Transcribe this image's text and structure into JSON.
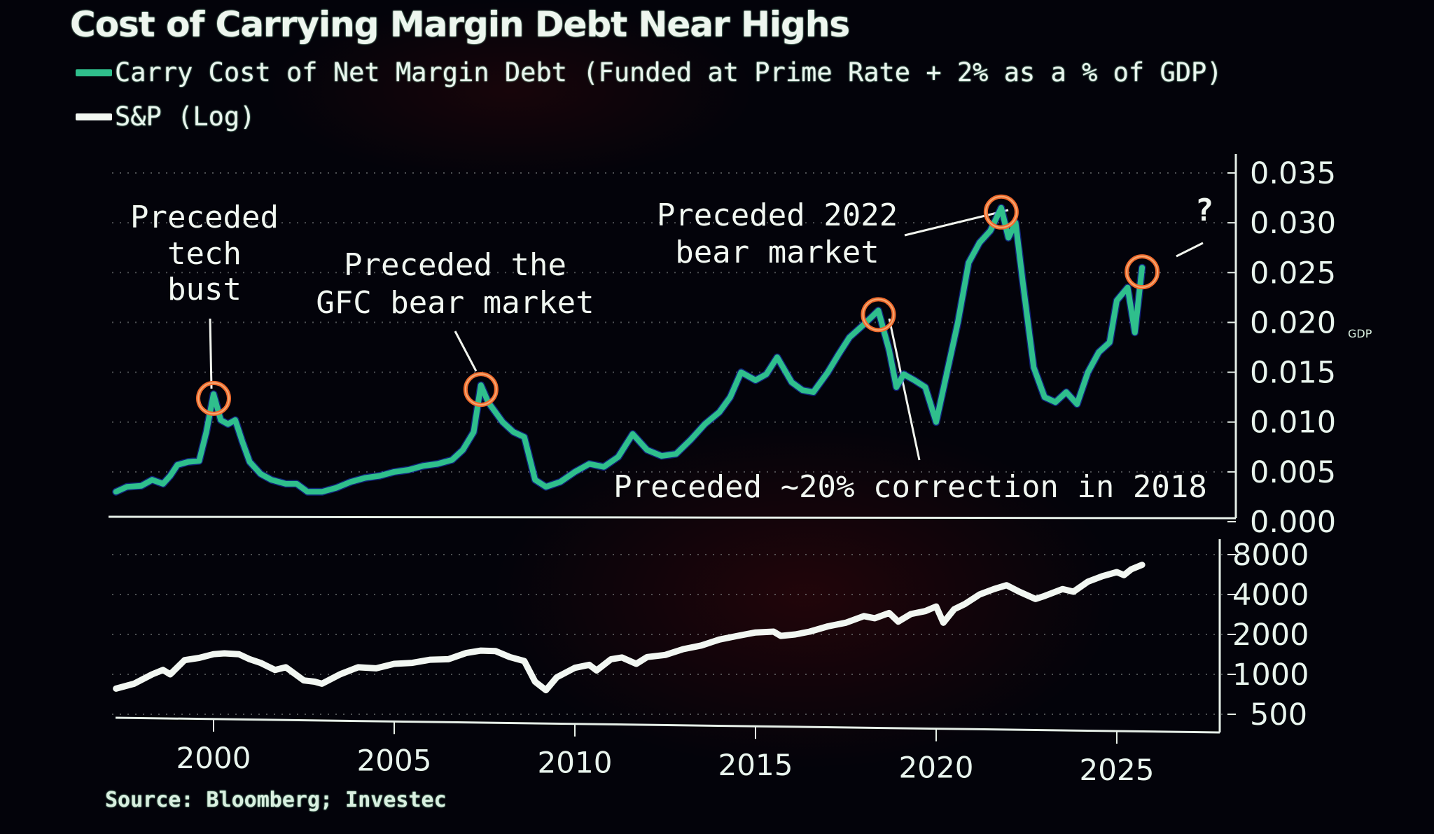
{
  "title": "Cost of Carrying Margin Debt Near Highs",
  "legend": [
    {
      "label": "Carry Cost of Net Margin Debt (Funded at Prime Rate + 2% as a % of GDP)",
      "color": "#2fbf8c"
    },
    {
      "label": "S&P (Log)",
      "color": "#f2f7f2"
    }
  ],
  "source": "Source: Bloomberg; Investec",
  "colors": {
    "background": "#03030a",
    "carry_line": "#2fbf8c",
    "sp_line": "#f2f7f2",
    "highlight_circle": "#ef6a2c",
    "axis": "#e6efe8"
  },
  "chart_data": [
    {
      "type": "line",
      "name": "upper-panel",
      "title": "Cost of Carrying Margin Debt Near Highs",
      "series": [
        {
          "name": "Carry Cost of Net Margin Debt (Funded at Prime Rate + 2% as a % of GDP)",
          "x": [
            1997.3,
            1997.6,
            1998.0,
            1998.3,
            1998.6,
            1998.8,
            1999.0,
            1999.3,
            1999.6,
            1999.8,
            2000.0,
            2000.2,
            2000.4,
            2000.6,
            2000.8,
            2001.0,
            2001.3,
            2001.6,
            2002.0,
            2002.3,
            2002.6,
            2003.0,
            2003.4,
            2003.8,
            2004.2,
            2004.6,
            2005.0,
            2005.4,
            2005.8,
            2006.2,
            2006.6,
            2006.9,
            2007.2,
            2007.4,
            2007.6,
            2007.8,
            2008.0,
            2008.3,
            2008.6,
            2008.9,
            2009.2,
            2009.6,
            2010.0,
            2010.4,
            2010.8,
            2011.2,
            2011.6,
            2012.0,
            2012.4,
            2012.8,
            2013.2,
            2013.6,
            2014.0,
            2014.3,
            2014.6,
            2015.0,
            2015.3,
            2015.6,
            2016.0,
            2016.3,
            2016.6,
            2017.0,
            2017.3,
            2017.6,
            2018.0,
            2018.4,
            2018.7,
            2018.9,
            2019.1,
            2019.4,
            2019.7,
            2020.0,
            2020.3,
            2020.6,
            2020.9,
            2021.2,
            2021.5,
            2021.8,
            2022.0,
            2022.2,
            2022.4,
            2022.7,
            2023.0,
            2023.3,
            2023.6,
            2023.9,
            2024.2,
            2024.5,
            2024.8,
            2025.0,
            2025.3,
            2025.5,
            2025.7
          ],
          "y": [
            0.003,
            0.0035,
            0.0036,
            0.0042,
            0.0038,
            0.0046,
            0.0057,
            0.006,
            0.0061,
            0.009,
            0.0128,
            0.0102,
            0.0098,
            0.0102,
            0.008,
            0.006,
            0.0048,
            0.0042,
            0.0038,
            0.0038,
            0.003,
            0.003,
            0.0034,
            0.004,
            0.0044,
            0.0046,
            0.005,
            0.0052,
            0.0056,
            0.0058,
            0.0062,
            0.0072,
            0.009,
            0.0137,
            0.012,
            0.011,
            0.01,
            0.009,
            0.0085,
            0.0042,
            0.0035,
            0.004,
            0.005,
            0.0058,
            0.0055,
            0.0065,
            0.0088,
            0.0072,
            0.0066,
            0.0068,
            0.0082,
            0.0098,
            0.011,
            0.0125,
            0.015,
            0.0142,
            0.0148,
            0.0165,
            0.014,
            0.0132,
            0.013,
            0.015,
            0.0168,
            0.0185,
            0.0198,
            0.0212,
            0.0172,
            0.0135,
            0.0148,
            0.0142,
            0.0135,
            0.01,
            0.015,
            0.02,
            0.026,
            0.028,
            0.0292,
            0.0315,
            0.0285,
            0.03,
            0.024,
            0.0155,
            0.0125,
            0.012,
            0.013,
            0.0118,
            0.015,
            0.017,
            0.018,
            0.0222,
            0.0235,
            0.019,
            0.0255
          ]
        }
      ],
      "ylabel": "",
      "y_unit_label": "GDP",
      "ylim": [
        0,
        0.035
      ],
      "yticks": [
        "0.035",
        "0.030",
        "0.025",
        "0.020",
        "0.015",
        "0.010",
        "0.005",
        "0.000"
      ],
      "ytick_values": [
        0.035,
        0.03,
        0.025,
        0.02,
        0.015,
        0.01,
        0.005,
        0.0
      ],
      "grid": true,
      "legend_position": "top-left",
      "annotations": [
        {
          "lines": [
            "Preceded",
            "tech",
            "bust"
          ],
          "x": 2000.0,
          "y": 0.0128
        },
        {
          "lines": [
            "Preceded the",
            "GFC bear market"
          ],
          "x": 2007.4,
          "y": 0.0137
        },
        {
          "lines": [
            "Preceded ~20% correction in 2018"
          ],
          "x": 2018.4,
          "y": 0.0212
        },
        {
          "lines": [
            "Preceded 2022",
            "bear market"
          ],
          "x": 2021.8,
          "y": 0.0315
        },
        {
          "lines": [
            "?"
          ],
          "x": 2025.7,
          "y": 0.0255
        }
      ]
    },
    {
      "type": "line",
      "name": "lower-panel",
      "series": [
        {
          "name": "S&P (Log)",
          "x": [
            1997.3,
            1997.8,
            1998.3,
            1998.6,
            1998.8,
            1999.2,
            1999.6,
            2000.0,
            2000.3,
            2000.7,
            2001.0,
            2001.3,
            2001.7,
            2002.0,
            2002.5,
            2002.8,
            2003.0,
            2003.5,
            2004.0,
            2004.5,
            2005.0,
            2005.5,
            2006.0,
            2006.5,
            2007.0,
            2007.4,
            2007.8,
            2008.2,
            2008.6,
            2008.9,
            2009.2,
            2009.5,
            2010.0,
            2010.4,
            2010.6,
            2011.0,
            2011.3,
            2011.7,
            2012.0,
            2012.5,
            2013.0,
            2013.5,
            2014.0,
            2014.5,
            2015.0,
            2015.5,
            2015.7,
            2016.1,
            2016.5,
            2017.0,
            2017.5,
            2018.0,
            2018.3,
            2018.7,
            2018.95,
            2019.3,
            2019.7,
            2020.0,
            2020.2,
            2020.5,
            2020.8,
            2021.2,
            2021.6,
            2021.95,
            2022.3,
            2022.75,
            2023.0,
            2023.5,
            2023.8,
            2024.2,
            2024.6,
            2025.0,
            2025.2,
            2025.4,
            2025.7
          ],
          "y": [
            780,
            850,
            1000,
            1080,
            1000,
            1280,
            1330,
            1420,
            1440,
            1420,
            1300,
            1220,
            1080,
            1130,
            900,
            880,
            850,
            1000,
            1130,
            1110,
            1200,
            1220,
            1290,
            1300,
            1450,
            1510,
            1500,
            1350,
            1260,
            880,
            760,
            950,
            1120,
            1180,
            1070,
            1300,
            1340,
            1200,
            1350,
            1400,
            1550,
            1650,
            1830,
            1950,
            2070,
            2100,
            1950,
            2000,
            2100,
            2300,
            2450,
            2750,
            2650,
            2900,
            2500,
            2850,
            3000,
            3250,
            2450,
            3100,
            3400,
            4000,
            4400,
            4700,
            4200,
            3700,
            3900,
            4400,
            4200,
            5000,
            5500,
            5900,
            5600,
            6200,
            6700
          ]
        }
      ],
      "ylim": [
        400,
        9000
      ],
      "yscale": "log",
      "yticks": [
        "8000",
        "4000",
        "2000",
        "1000",
        "500"
      ],
      "ytick_values": [
        8000,
        4000,
        2000,
        1000,
        500
      ],
      "grid": true
    }
  ],
  "xaxis": {
    "ticks": [
      "2000",
      "2005",
      "2010",
      "2015",
      "2020",
      "2025"
    ],
    "tick_values": [
      2000,
      2005,
      2010,
      2015,
      2020,
      2025
    ],
    "xlim": [
      1997.0,
      2027.8
    ]
  }
}
